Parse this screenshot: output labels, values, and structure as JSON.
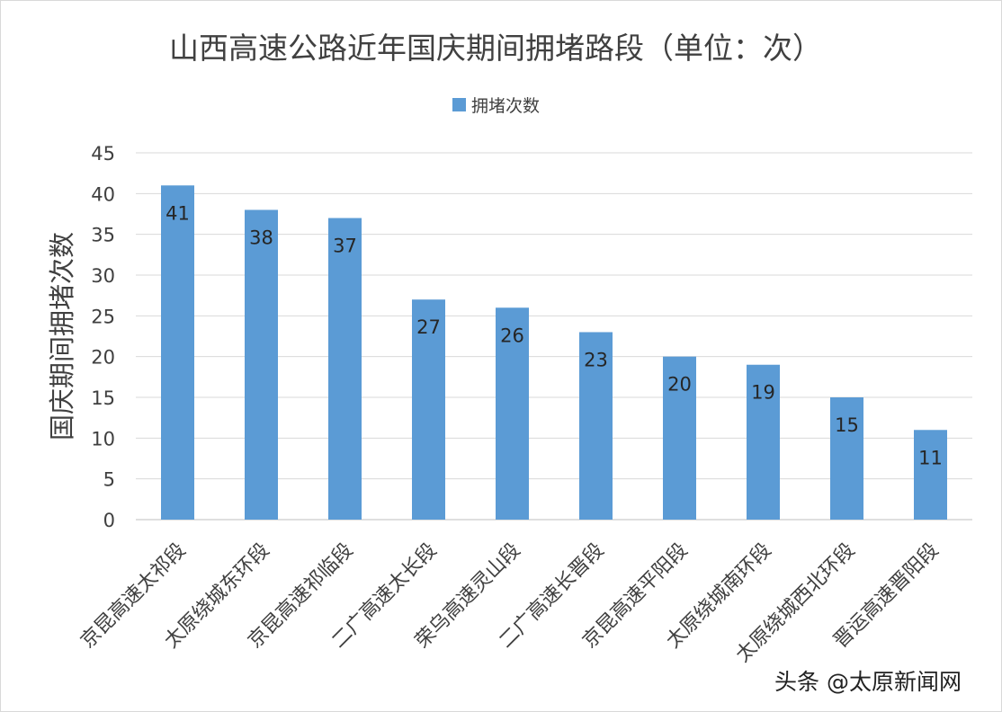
{
  "chart_data": {
    "type": "bar",
    "title": "山西高速公路近年国庆期间拥堵路段（单位：次）",
    "ylabel": "国庆期间拥堵次数",
    "xlabel": "",
    "ylim": [
      0,
      45
    ],
    "yticks": [
      0,
      5,
      10,
      15,
      20,
      25,
      30,
      35,
      40,
      45
    ],
    "grid": true,
    "legend_position": "top",
    "series": [
      {
        "name": "拥堵次数",
        "color": "#5b9bd5",
        "values": [
          41,
          38,
          37,
          27,
          26,
          23,
          20,
          19,
          15,
          11
        ]
      }
    ],
    "categories": [
      "京昆高速太祁段",
      "太原绕城东环段",
      "京昆高速祁临段",
      "二广高速太长段",
      "荣乌高速灵山段",
      "二广高速长晋段",
      "京昆高速平阳段",
      "太原绕城南环段",
      "太原绕城西北环段",
      "晋运高速晋阳段"
    ]
  },
  "watermark": "头条 @太原新闻网"
}
